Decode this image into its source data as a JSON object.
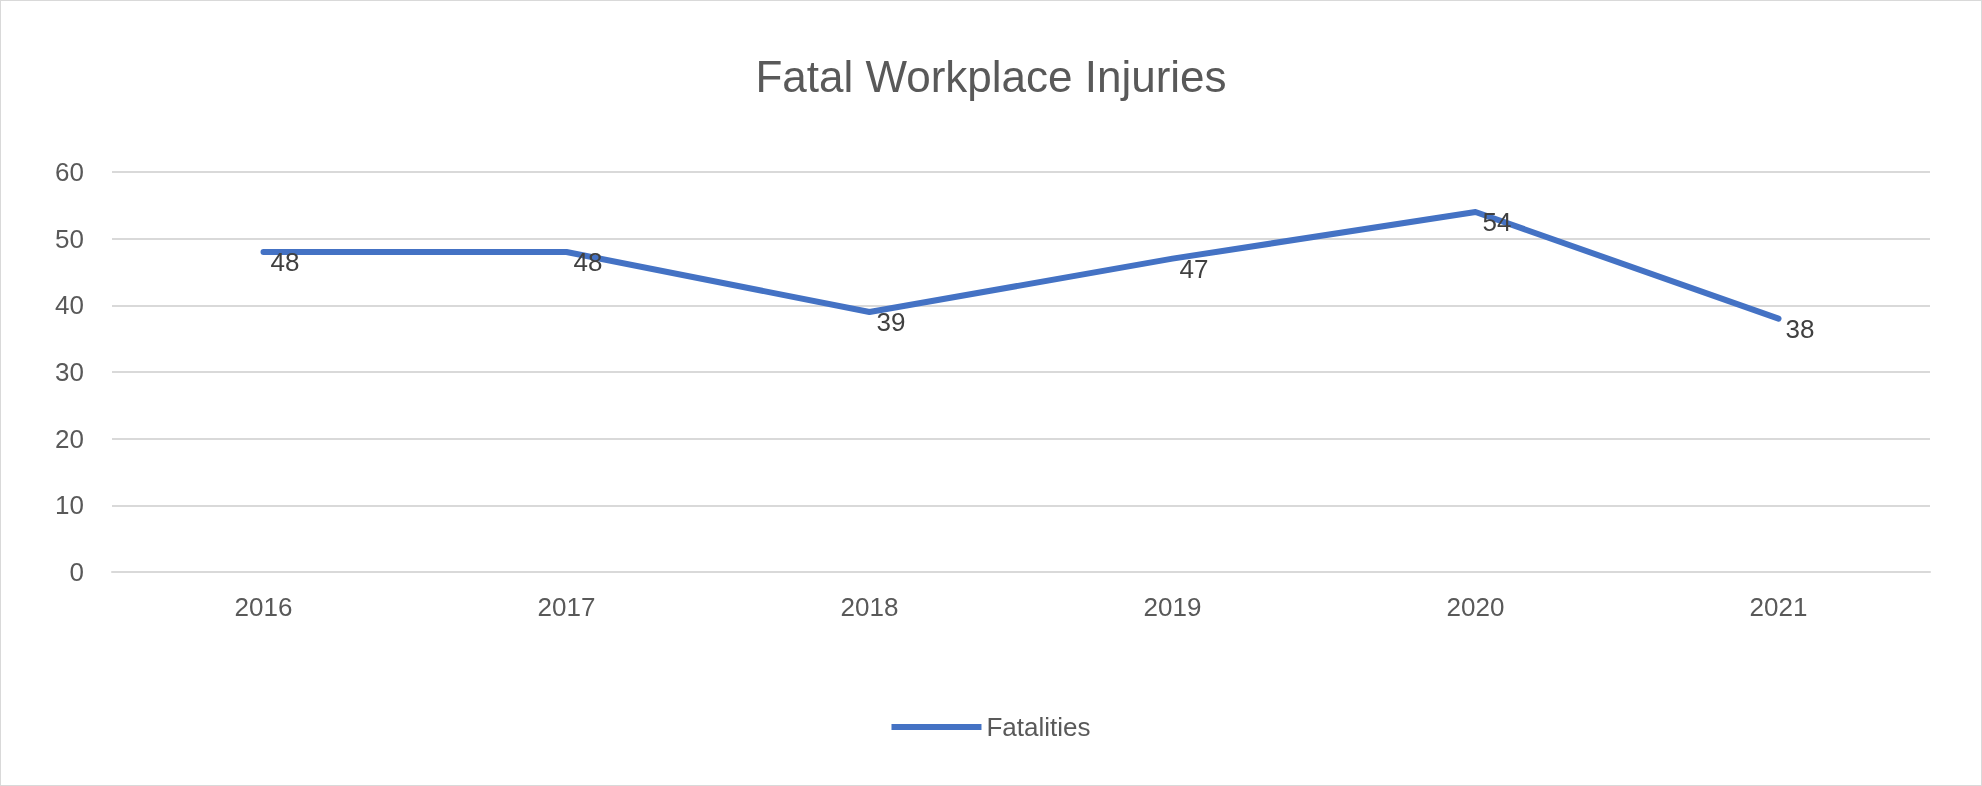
{
  "chart_data": {
    "type": "line",
    "title": "Fatal Workplace Injuries",
    "categories": [
      "2016",
      "2017",
      "2018",
      "2019",
      "2020",
      "2021"
    ],
    "series": [
      {
        "name": "Fatalities",
        "color": "#4472c4",
        "values": [
          48,
          48,
          39,
          47,
          54,
          38
        ]
      }
    ],
    "ylim": [
      0,
      60
    ],
    "yticks": [
      0,
      10,
      20,
      30,
      40,
      50,
      60
    ],
    "grid": "y",
    "legend": "bottom",
    "data_labels": true,
    "marker": "none",
    "line_style": "solid"
  }
}
